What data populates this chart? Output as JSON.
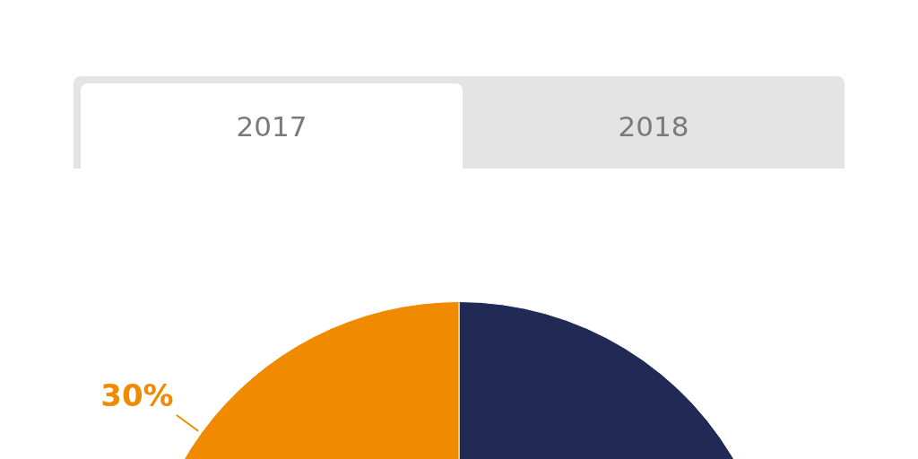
{
  "chart_data": {
    "type": "pie",
    "categories": [
      null,
      null
    ],
    "values": [
      70,
      30
    ],
    "colors": [
      "#202a54",
      "#f08a00"
    ],
    "value_labels": [
      null,
      "30%"
    ],
    "annotations": [
      "2017",
      "2018"
    ],
    "legend": false
  }
}
